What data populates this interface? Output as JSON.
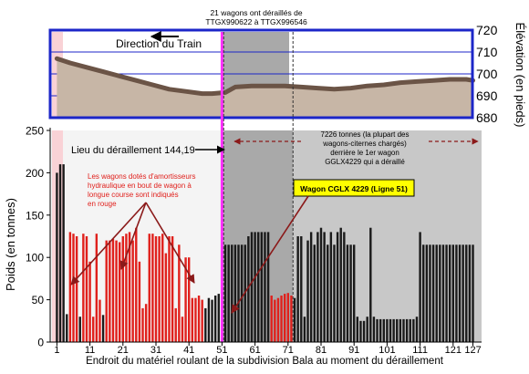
{
  "chart_data": [
    {
      "type": "area",
      "ylabel": "Élévation (en pieds)",
      "ylim": [
        680,
        720
      ],
      "yticks": [
        680,
        690,
        700,
        710,
        720
      ],
      "x": [
        1,
        5,
        10,
        15,
        20,
        25,
        30,
        35,
        40,
        45,
        48,
        52,
        55,
        60,
        65,
        70,
        75,
        80,
        85,
        90,
        95,
        100,
        105,
        110,
        115,
        120,
        125,
        127
      ],
      "values": [
        707,
        705,
        703,
        701,
        699,
        697,
        695,
        693,
        692,
        691,
        691,
        691.5,
        694,
        694.5,
        694.5,
        694.5,
        694,
        693.5,
        693,
        693.5,
        694.5,
        695,
        696,
        696.5,
        697,
        697.5,
        697.5,
        697
      ],
      "annotations": {
        "direction": "Direction du Train",
        "derailed_wagons": "21 wagons ont déraillés de TTGX990622 à TTGX996546"
      }
    },
    {
      "type": "bar",
      "title": "",
      "xlabel": "Endroit du matériel roulant de la subdivision Bala au moment du déraillement",
      "ylabel": "Poids (en tonnes)",
      "ylim": [
        0,
        250
      ],
      "yticks": [
        0,
        50,
        100,
        150,
        200,
        250
      ],
      "xticks": [
        1,
        11,
        21,
        31,
        41,
        51,
        61,
        71,
        81,
        91,
        101,
        111,
        121,
        127
      ],
      "x_start": 1,
      "values": [
        200,
        210,
        210,
        33,
        130,
        128,
        125,
        30,
        128,
        125,
        95,
        30,
        128,
        50,
        32,
        120,
        120,
        122,
        120,
        118,
        125,
        128,
        130,
        120,
        135,
        95,
        40,
        45,
        128,
        128,
        125,
        125,
        128,
        105,
        125,
        125,
        40,
        115,
        30,
        100,
        100,
        52,
        52,
        55,
        50,
        40,
        52,
        50,
        55,
        57,
        30,
        115,
        115,
        115,
        115,
        115,
        115,
        115,
        125,
        130,
        130,
        130,
        130,
        130,
        130,
        55,
        50,
        52,
        55,
        57,
        58,
        55,
        52,
        125,
        125,
        30,
        120,
        130,
        115,
        130,
        135,
        130,
        115,
        130,
        115,
        130,
        135,
        130,
        115,
        115,
        115,
        30,
        25,
        25,
        30,
        135,
        30,
        27,
        27,
        27,
        27,
        27,
        27,
        27,
        27,
        27,
        27,
        27,
        27,
        30,
        130,
        115,
        115,
        115,
        115,
        115,
        115,
        115,
        115,
        115,
        115,
        115,
        115,
        115,
        115,
        115,
        115
      ],
      "colors": {
        "normal": "#1a1a1a",
        "hydraulic": "#e0201c",
        "highlight": "#ff2fff"
      },
      "hydraulic_ranges": [
        [
          5,
          7
        ],
        [
          9,
          14
        ],
        [
          16,
          45
        ],
        [
          66,
          72
        ]
      ],
      "derailed_range": [
        52,
        72
      ],
      "highlight_car": 51,
      "annotations": {
        "derail_location": "Lieu du déraillement 144,19",
        "tonnage_note": "7226 tonnes (la plupart des wagons-citernes chargés) derrière le 1er wagon GGLX4229 qui a déraillé",
        "hydraulic_note": "Les wagons dotés d'amortisseurs hydraulique en bout de wagon à longue course sont indiqués en rouge",
        "callout": "Wagon CGLX 4229 (Ligne 51)"
      }
    }
  ]
}
